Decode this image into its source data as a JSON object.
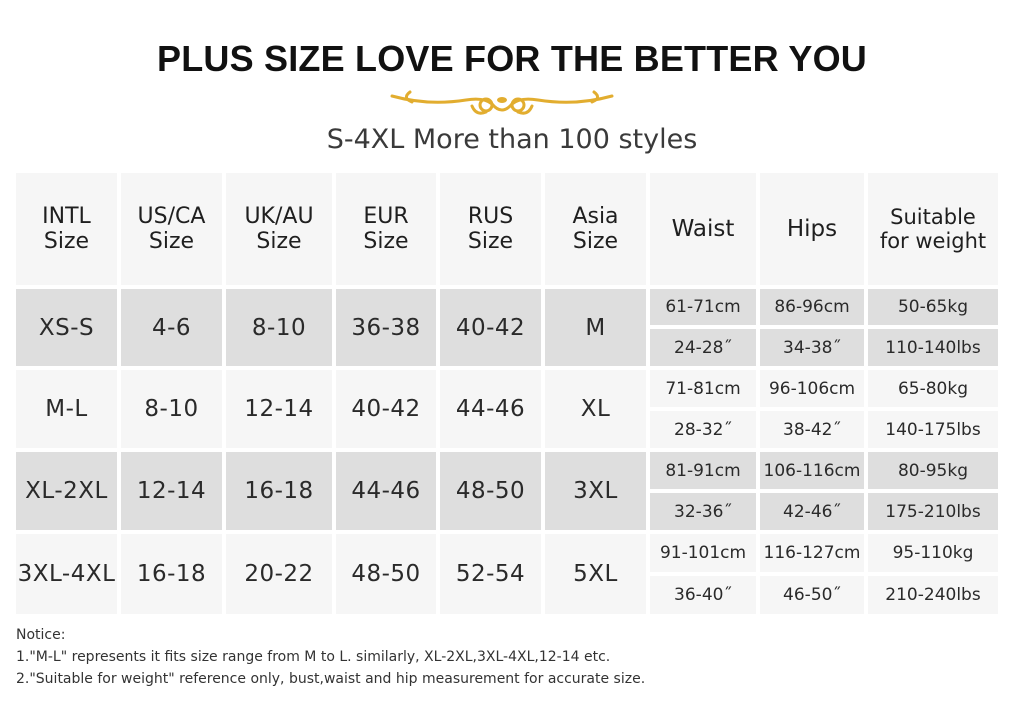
{
  "title": "PLUS SIZE LOVE FOR THE BETTER YOU",
  "ornament_color": "#e2ad2f",
  "subtitle": "S-4XL More than 100 styles",
  "table": {
    "headers": [
      {
        "line1": "INTL",
        "line2": "Size"
      },
      {
        "line1": "US/CA",
        "line2": "Size"
      },
      {
        "line1": "UK/AU",
        "line2": "Size"
      },
      {
        "line1": "EUR",
        "line2": "Size"
      },
      {
        "line1": "RUS",
        "line2": "Size"
      },
      {
        "line1": "Asia",
        "line2": "Size"
      },
      {
        "line1": "Waist",
        "line2": ""
      },
      {
        "line1": "Hips",
        "line2": ""
      },
      {
        "line1": "Suitable",
        "line2": "for weight"
      }
    ],
    "rows": [
      {
        "intl": "XS-S",
        "us": "4-6",
        "uk": "8-10",
        "eur": "36-38",
        "rus": "40-42",
        "asia": "M",
        "waist_cm": "61-71cm",
        "waist_in": "24-28˝",
        "hips_cm": "86-96cm",
        "hips_in": "34-38˝",
        "weight_kg": "50-65kg",
        "weight_lbs": "110-140lbs"
      },
      {
        "intl": "M-L",
        "us": "8-10",
        "uk": "12-14",
        "eur": "40-42",
        "rus": "44-46",
        "asia": "XL",
        "waist_cm": "71-81cm",
        "waist_in": "28-32˝",
        "hips_cm": "96-106cm",
        "hips_in": "38-42˝",
        "weight_kg": "65-80kg",
        "weight_lbs": "140-175lbs"
      },
      {
        "intl": "XL-2XL",
        "us": "12-14",
        "uk": "16-18",
        "eur": "44-46",
        "rus": "48-50",
        "asia": "3XL",
        "waist_cm": "81-91cm",
        "waist_in": "32-36˝",
        "hips_cm": "106-116cm",
        "hips_in": "42-46˝",
        "weight_kg": "80-95kg",
        "weight_lbs": "175-210lbs"
      },
      {
        "intl": "3XL-4XL",
        "us": "16-18",
        "uk": "20-22",
        "eur": "48-50",
        "rus": "52-54",
        "asia": "5XL",
        "waist_cm": "91-101cm",
        "waist_in": "36-40˝",
        "hips_cm": "116-127cm",
        "hips_in": "46-50˝",
        "weight_kg": "95-110kg",
        "weight_lbs": "210-240lbs"
      }
    ]
  },
  "notice": {
    "heading": "Notice:",
    "line1": "1.\"M-L\" represents it fits size range from M to L.  similarly, XL-2XL,3XL-4XL,12-14 etc.",
    "line2": "2.\"Suitable for weight\" reference only, bust,waist and hip measurement for accurate size."
  }
}
